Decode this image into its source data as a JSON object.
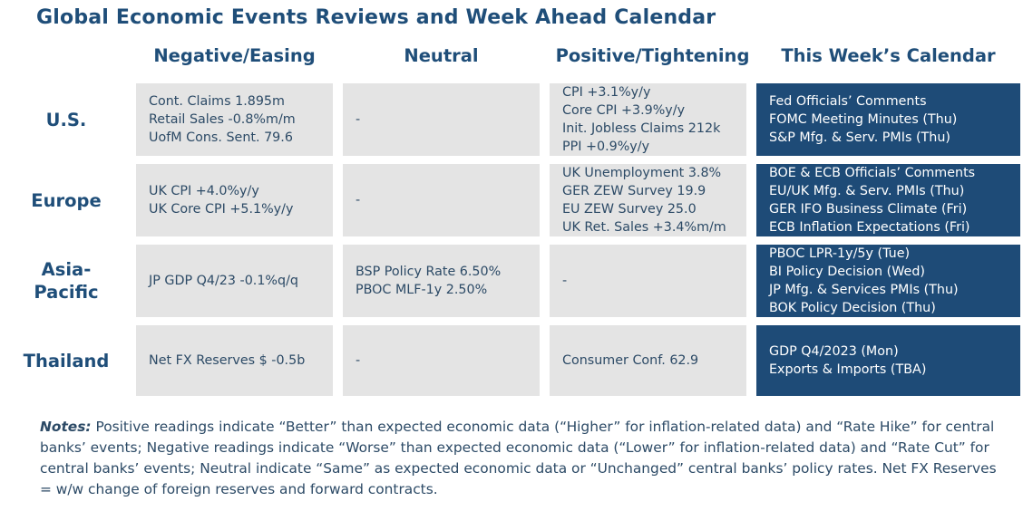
{
  "title": "Global Economic Events Reviews and Week Ahead Calendar",
  "columns": [
    "Negative/Easing",
    "Neutral",
    "Positive/Tightening",
    "This Week’s Calendar"
  ],
  "rows": [
    {
      "region": "U.S.",
      "negative": [
        "Cont. Claims 1.895m",
        "Retail Sales -0.8%m/m",
        "UofM Cons. Sent. 79.6"
      ],
      "neutral": [
        "-"
      ],
      "positive": [
        "CPI +3.1%y/y",
        "Core CPI +3.9%y/y",
        "Init. Jobless Claims 212k",
        "PPI +0.9%y/y"
      ],
      "calendar": [
        "Fed Officials’ Comments",
        "FOMC Meeting Minutes (Thu)",
        "S&P Mfg. & Serv. PMIs (Thu)"
      ]
    },
    {
      "region": "Europe",
      "negative": [
        "UK CPI +4.0%y/y",
        "UK Core CPI +5.1%y/y"
      ],
      "neutral": [
        "-"
      ],
      "positive": [
        "UK Unemployment 3.8%",
        "GER ZEW Survey 19.9",
        "EU ZEW Survey 25.0",
        "UK Ret. Sales +3.4%m/m"
      ],
      "calendar": [
        "BOE & ECB Officials’ Comments",
        "EU/UK Mfg. & Serv. PMIs (Thu)",
        "GER IFO Business Climate (Fri)",
        "ECB Inflation Expectations (Fri)"
      ]
    },
    {
      "region_lines": [
        "Asia-",
        "Pacific"
      ],
      "negative": [
        "JP GDP Q4/23 -0.1%q/q"
      ],
      "neutral": [
        "BSP Policy Rate 6.50%",
        "PBOC MLF-1y 2.50%"
      ],
      "positive": [
        "-"
      ],
      "calendar": [
        "PBOC LPR-1y/5y (Tue)",
        "BI Policy Decision (Wed)",
        "JP Mfg. & Services PMIs (Thu)",
        "BOK Policy Decision (Thu)"
      ]
    },
    {
      "region": "Thailand",
      "negative": [
        "Net FX Reserves $ -0.5b"
      ],
      "neutral": [
        "-"
      ],
      "positive": [
        "Consumer Conf. 62.9"
      ],
      "calendar": [
        "GDP Q4/2023 (Mon)",
        "Exports & Imports (TBA)"
      ]
    }
  ],
  "notes": {
    "label": "Notes:",
    "text": "Positive readings indicate “Better” than expected economic data (“Higher” for inflation-related data) and “Rate Hike” for central banks’ events; Negative readings indicate “Worse” than expected economic data (“Lower” for inflation-related data) and “Rate Cut” for central banks’ events; Neutral indicate “Same” as expected economic data or “Unchanged” central banks’ policy rates. Net FX Reserves = w/w change of foreign reserves and forward contracts."
  }
}
